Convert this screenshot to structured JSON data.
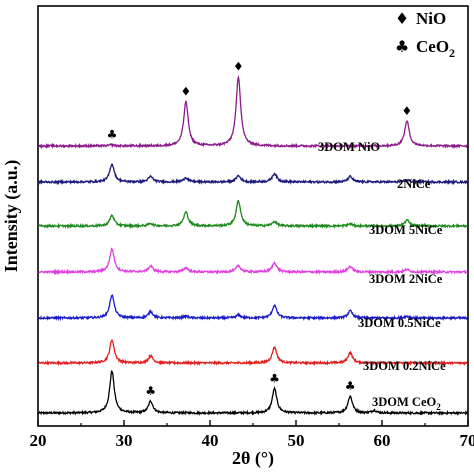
{
  "chart_data": {
    "type": "line",
    "title": "",
    "xlabel": "2θ (°)",
    "ylabel": "Intensity (a.u.)",
    "xlim": [
      20,
      70
    ],
    "xticks": [
      "20",
      "30",
      "40",
      "50",
      "60",
      "70"
    ],
    "grid": false,
    "legend_position": "top-right",
    "colors": {
      "3DOM CeO2": "#000000",
      "3DOM 0.2NiCe": "#e02020",
      "3DOM 0.5NiCe": "#1a1ac8",
      "3DOM 2NiCe": "#e040e0",
      "3DOM 5NiCe": "#1f8a1f",
      "2NiCe": "#1a1a7a",
      "3DOM NiO": "#8b1a8b"
    },
    "legend": [
      {
        "symbol": "♦",
        "label": "NiO",
        "icon": "diamond-icon"
      },
      {
        "symbol": "♣",
        "label": "CeO2",
        "icon": "club-icon"
      }
    ],
    "series": [
      {
        "name": "3DOM CeO2",
        "label_main": "3DOM CeO",
        "label_sub": "2",
        "peaks": [
          {
            "x": 28.6,
            "height": 1.0
          },
          {
            "x": 33.1,
            "height": 0.28
          },
          {
            "x": 47.5,
            "height": 0.58
          },
          {
            "x": 56.3,
            "height": 0.4
          },
          {
            "x": 59.1,
            "height": 0.06
          }
        ]
      },
      {
        "name": "3DOM 0.2NiCe",
        "label_main": "3DOM 0.2NiCe",
        "label_sub": "",
        "peaks": [
          {
            "x": 28.6,
            "height": 0.55
          },
          {
            "x": 33.1,
            "height": 0.17
          },
          {
            "x": 47.5,
            "height": 0.38
          },
          {
            "x": 56.3,
            "height": 0.25
          }
        ]
      },
      {
        "name": "3DOM 0.5NiCe",
        "label_main": "3DOM 0.5NiCe",
        "label_sub": "",
        "peaks": [
          {
            "x": 28.6,
            "height": 0.55
          },
          {
            "x": 33.1,
            "height": 0.15
          },
          {
            "x": 37.2,
            "height": 0.04
          },
          {
            "x": 43.3,
            "height": 0.07
          },
          {
            "x": 47.5,
            "height": 0.3
          },
          {
            "x": 56.3,
            "height": 0.17
          },
          {
            "x": 62.9,
            "height": 0.04
          }
        ]
      },
      {
        "name": "3DOM 2NiCe",
        "label_main": "3DOM 2NiCe",
        "label_sub": "",
        "peaks": [
          {
            "x": 28.6,
            "height": 0.55
          },
          {
            "x": 33.1,
            "height": 0.14
          },
          {
            "x": 37.2,
            "height": 0.1
          },
          {
            "x": 43.3,
            "height": 0.15
          },
          {
            "x": 47.5,
            "height": 0.22
          },
          {
            "x": 56.3,
            "height": 0.13
          },
          {
            "x": 62.9,
            "height": 0.06
          }
        ]
      },
      {
        "name": "3DOM 5NiCe",
        "label_main": "3DOM 5NiCe",
        "label_sub": "",
        "peaks": [
          {
            "x": 28.6,
            "height": 0.25
          },
          {
            "x": 33.1,
            "height": 0.06
          },
          {
            "x": 37.2,
            "height": 0.33
          },
          {
            "x": 43.3,
            "height": 0.6
          },
          {
            "x": 47.5,
            "height": 0.1
          },
          {
            "x": 56.3,
            "height": 0.05
          },
          {
            "x": 62.9,
            "height": 0.14
          }
        ]
      },
      {
        "name": "2NiCe",
        "label_main": "2NiCe",
        "label_sub": "",
        "peaks": [
          {
            "x": 28.6,
            "height": 0.43
          },
          {
            "x": 33.1,
            "height": 0.13
          },
          {
            "x": 37.2,
            "height": 0.1
          },
          {
            "x": 43.3,
            "height": 0.15
          },
          {
            "x": 47.5,
            "height": 0.2
          },
          {
            "x": 56.3,
            "height": 0.13
          },
          {
            "x": 62.9,
            "height": 0.05
          }
        ]
      },
      {
        "name": "3DOM NiO",
        "label_main": "3DOM NiO",
        "label_sub": "",
        "peaks": [
          {
            "x": 28.6,
            "height": 0.03
          },
          {
            "x": 37.2,
            "height": 1.05
          },
          {
            "x": 43.3,
            "height": 1.65
          },
          {
            "x": 62.9,
            "height": 0.6
          }
        ]
      }
    ],
    "annotations": [
      {
        "series": "3DOM CeO2",
        "x": 33.1,
        "symbol": "♣"
      },
      {
        "series": "3DOM CeO2",
        "x": 47.5,
        "symbol": "♣"
      },
      {
        "series": "3DOM CeO2",
        "x": 56.3,
        "symbol": "♣"
      },
      {
        "series": "3DOM NiO",
        "x": 28.6,
        "symbol": "♣"
      },
      {
        "series": "3DOM NiO",
        "x": 37.2,
        "symbol": "♦"
      },
      {
        "series": "3DOM NiO",
        "x": 43.3,
        "symbol": "♦"
      },
      {
        "series": "3DOM NiO",
        "x": 62.9,
        "symbol": "♦"
      }
    ]
  }
}
